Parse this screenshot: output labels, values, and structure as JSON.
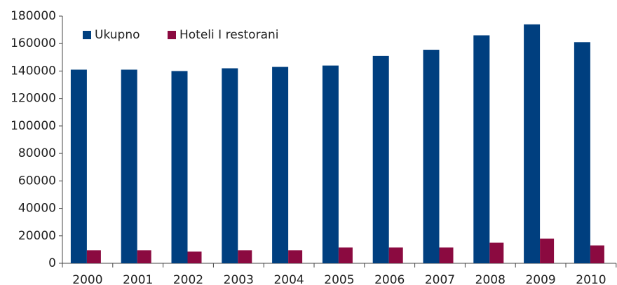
{
  "chart_data": {
    "type": "bar",
    "categories": [
      "2000",
      "2001",
      "2002",
      "2003",
      "2004",
      "2005",
      "2006",
      "2007",
      "2008",
      "2009",
      "2010"
    ],
    "series": [
      {
        "name": "Ukupno",
        "color": "#003f7f",
        "values": [
          141000,
          141000,
          140000,
          142000,
          143000,
          144000,
          151000,
          155500,
          166000,
          174000,
          161000
        ]
      },
      {
        "name": "Hoteli I restorani",
        "color": "#8b0a40",
        "values": [
          9500,
          9500,
          8500,
          9500,
          9500,
          11500,
          11500,
          11500,
          15000,
          18000,
          13000
        ]
      }
    ],
    "ylim": [
      0,
      180000
    ],
    "yticks": [
      0,
      20000,
      40000,
      60000,
      80000,
      100000,
      120000,
      140000,
      160000,
      180000
    ],
    "legend": "upper left"
  }
}
